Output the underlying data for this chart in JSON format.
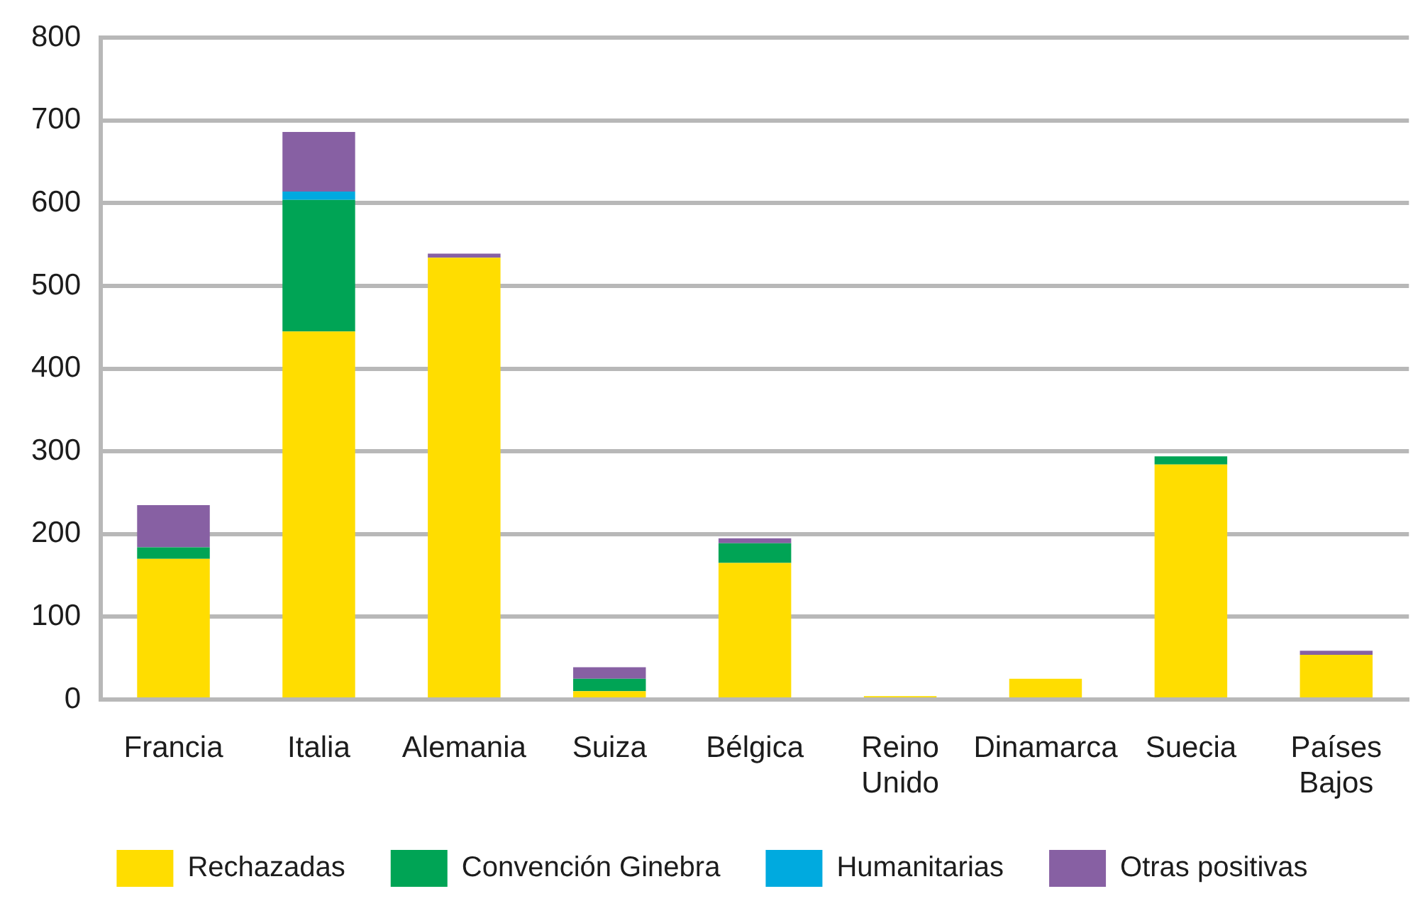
{
  "chart_data": {
    "type": "bar",
    "stacked": true,
    "categories": [
      "Francia",
      "Italia",
      "Alemania",
      "Suiza",
      "Bélgica",
      "Reino Unido",
      "Dinamarca",
      "Suecia",
      "Países Bajos"
    ],
    "series": [
      {
        "name": "Rechazadas",
        "color": "#ffdd00",
        "values": [
          170,
          445,
          534,
          10,
          165,
          4,
          25,
          284,
          54
        ]
      },
      {
        "name": "Convención Ginebra",
        "color": "#00a455",
        "values": [
          14,
          159,
          null,
          15,
          24,
          null,
          null,
          10,
          null
        ]
      },
      {
        "name": "Humanitarias",
        "color": "#00aadf",
        "values": [
          null,
          10,
          null,
          null,
          null,
          null,
          null,
          null,
          null
        ]
      },
      {
        "name": "Otras positivas",
        "color": "#8760a3",
        "values": [
          51,
          72,
          5,
          14,
          6,
          null,
          null,
          null,
          5
        ]
      }
    ],
    "ylim": [
      0,
      800
    ],
    "yticks": [
      0,
      100,
      200,
      300,
      400,
      500,
      600,
      700,
      800
    ],
    "grid": "y",
    "legend": "bottom"
  }
}
